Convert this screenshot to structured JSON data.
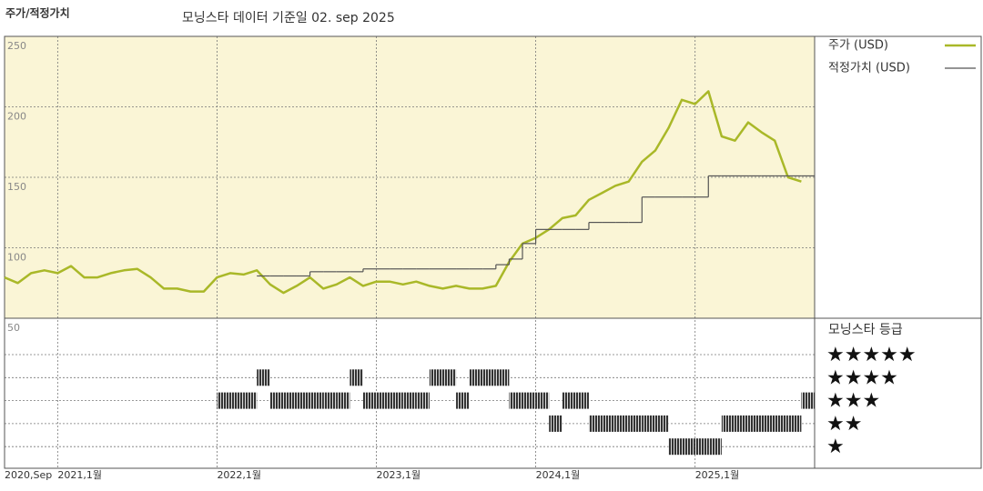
{
  "chart_data": {
    "type": "line",
    "header": "주가/적정가치",
    "title": "모닝스타 데이터 기준일 02. sep 2025",
    "x": [
      "2020-09",
      "2020-10",
      "2020-11",
      "2020-12",
      "2021-01",
      "2021-02",
      "2021-03",
      "2021-04",
      "2021-05",
      "2021-06",
      "2021-07",
      "2021-08",
      "2021-09",
      "2021-10",
      "2021-11",
      "2021-12",
      "2022-01",
      "2022-02",
      "2022-03",
      "2022-04",
      "2022-05",
      "2022-06",
      "2022-07",
      "2022-08",
      "2022-09",
      "2022-10",
      "2022-11",
      "2022-12",
      "2023-01",
      "2023-02",
      "2023-03",
      "2023-04",
      "2023-05",
      "2023-06",
      "2023-07",
      "2023-08",
      "2023-09",
      "2023-10",
      "2023-11",
      "2023-12",
      "2024-01",
      "2024-02",
      "2024-03",
      "2024-04",
      "2024-05",
      "2024-06",
      "2024-07",
      "2024-08",
      "2024-09",
      "2024-10",
      "2024-11",
      "2024-12",
      "2025-01",
      "2025-02",
      "2025-03",
      "2025-04",
      "2025-05",
      "2025-06",
      "2025-07",
      "2025-08",
      "2025-09"
    ],
    "series": [
      {
        "name": "주가 (USD)",
        "color": "#a9b828",
        "values": [
          79,
          75,
          82,
          84,
          82,
          87,
          79,
          79,
          82,
          84,
          85,
          79,
          71,
          71,
          69,
          69,
          79,
          82,
          81,
          84,
          74,
          68,
          73,
          79,
          71,
          74,
          79,
          73,
          76,
          76,
          74,
          76,
          73,
          71,
          73,
          71,
          71,
          73,
          90,
          103,
          107,
          113,
          121,
          123,
          134,
          139,
          144,
          147,
          161,
          169,
          185,
          205,
          202,
          211,
          179,
          176,
          189,
          182,
          176,
          150,
          147
        ]
      },
      {
        "name": "적정가치 (USD)",
        "color": "#555555",
        "style": "step",
        "values": [
          null,
          null,
          null,
          null,
          null,
          null,
          null,
          null,
          null,
          null,
          null,
          null,
          null,
          null,
          null,
          null,
          null,
          null,
          null,
          80,
          80,
          80,
          80,
          83,
          83,
          83,
          83,
          85,
          85,
          85,
          85,
          85,
          85,
          85,
          85,
          85,
          85,
          88,
          92,
          103,
          113,
          113,
          113,
          113,
          118,
          118,
          118,
          118,
          136,
          136,
          136,
          136,
          136,
          151,
          151,
          151,
          151,
          151,
          151,
          151,
          151
        ]
      }
    ],
    "xlim": [
      "2020-09",
      "2025-10"
    ],
    "xticks": [
      {
        "value": "2020-09",
        "label": "2020,Sep"
      },
      {
        "value": "2021-01",
        "label": "2021,1월"
      },
      {
        "value": "2022-01",
        "label": "2022,1월"
      },
      {
        "value": "2023-01",
        "label": "2023,1월"
      },
      {
        "value": "2024-01",
        "label": "2024,1월"
      },
      {
        "value": "2025-01",
        "label": "2025,1월"
      }
    ],
    "ylim": [
      50,
      250
    ],
    "yticks": [
      50,
      100,
      150,
      200,
      250
    ],
    "grid": true,
    "rating": {
      "name": "모닝스타 등급",
      "labels": [
        "★★★★★",
        "★★★★",
        "★★★",
        "★★",
        "★"
      ],
      "levels": [
        5,
        4,
        3,
        2,
        1
      ],
      "values": [
        null,
        null,
        null,
        null,
        null,
        null,
        null,
        null,
        null,
        null,
        null,
        null,
        null,
        null,
        null,
        null,
        3,
        3,
        3,
        4,
        3,
        3,
        3,
        3,
        3,
        3,
        4,
        3,
        3,
        3,
        3,
        3,
        4,
        4,
        3,
        4,
        4,
        4,
        3,
        3,
        3,
        2,
        3,
        3,
        2,
        2,
        2,
        2,
        2,
        2,
        1,
        1,
        1,
        1,
        2,
        2,
        2,
        2,
        2,
        2,
        3
      ]
    }
  }
}
